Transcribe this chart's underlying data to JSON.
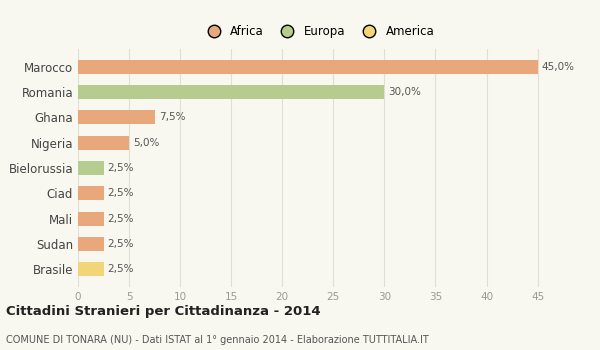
{
  "categories": [
    "Brasile",
    "Sudan",
    "Mali",
    "Ciad",
    "Bielorussia",
    "Nigeria",
    "Ghana",
    "Romania",
    "Marocco"
  ],
  "values": [
    2.5,
    2.5,
    2.5,
    2.5,
    2.5,
    5.0,
    7.5,
    30.0,
    45.0
  ],
  "colors": [
    "#f2d479",
    "#e8a87c",
    "#e8a87c",
    "#e8a87c",
    "#b5cc8e",
    "#e8a87c",
    "#e8a87c",
    "#b5cc8e",
    "#e8a87c"
  ],
  "labels": [
    "2,5%",
    "2,5%",
    "2,5%",
    "2,5%",
    "2,5%",
    "5,0%",
    "7,5%",
    "30,0%",
    "45,0%"
  ],
  "legend": [
    {
      "label": "Africa",
      "color": "#e8a87c"
    },
    {
      "label": "Europa",
      "color": "#b5cc8e"
    },
    {
      "label": "America",
      "color": "#f2d479"
    }
  ],
  "xlim": [
    0,
    47
  ],
  "xticks": [
    0,
    5,
    10,
    15,
    20,
    25,
    30,
    35,
    40,
    45
  ],
  "title_bold": "Cittadini Stranieri per Cittadinanza - 2014",
  "subtitle": "COMUNE DI TONARA (NU) - Dati ISTAT al 1° gennaio 2014 - Elaborazione TUTTITALIA.IT",
  "background_color": "#f8f8f0",
  "bar_height": 0.55,
  "grid_color": "#e0e0d0"
}
